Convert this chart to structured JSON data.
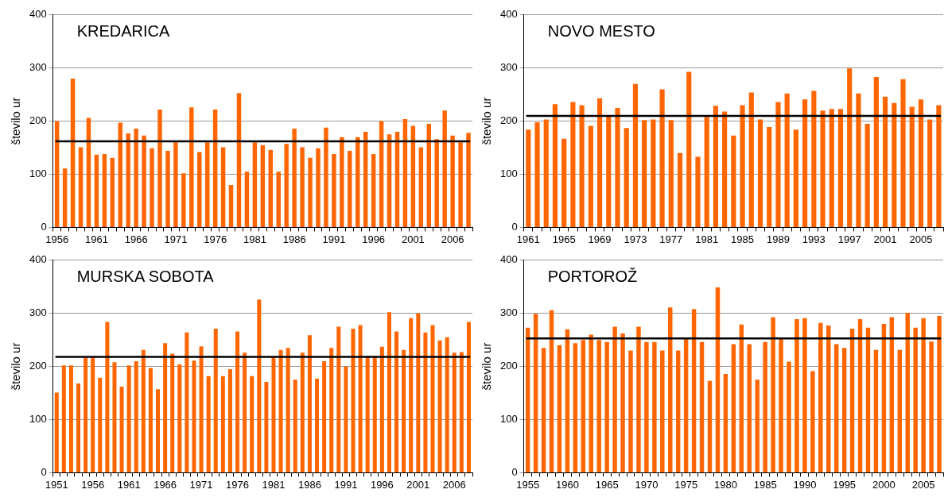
{
  "chart_data": [
    {
      "type": "bar",
      "title": "KREDARICA",
      "ylabel": "število ur",
      "grid": "y",
      "legend": false,
      "ylim": [
        0,
        400
      ],
      "yticks": [
        0,
        100,
        200,
        300,
        400
      ],
      "categories": [
        "1956",
        null,
        null,
        null,
        null,
        "1961",
        null,
        null,
        null,
        null,
        "1966",
        null,
        null,
        null,
        null,
        "1971",
        null,
        null,
        null,
        null,
        "1976",
        null,
        null,
        null,
        null,
        "1981",
        null,
        null,
        null,
        null,
        "1986",
        null,
        null,
        null,
        null,
        "1991",
        null,
        null,
        null,
        null,
        "1996",
        null,
        null,
        null,
        null,
        "2001",
        null,
        null,
        null,
        null,
        "2006",
        null,
        null
      ],
      "series": [
        {
          "color": "#ff6600",
          "values": [
            200,
            111,
            280,
            151,
            206,
            137,
            138,
            131,
            197,
            177,
            186,
            173,
            149,
            222,
            144,
            160,
            102,
            226,
            142,
            160,
            222,
            151,
            80,
            253,
            105,
            160,
            155,
            146,
            105,
            157,
            186,
            151,
            131,
            149,
            188,
            138,
            170,
            144,
            170,
            180,
            138,
            200,
            175,
            180,
            204,
            191,
            151,
            195,
            166,
            220,
            173,
            160,
            178
          ]
        }
      ],
      "ref_lines": [
        {
          "axis": "y",
          "value": 162,
          "color": "#000000"
        }
      ]
    },
    {
      "type": "bar",
      "title": "NOVO MESTO",
      "ylabel": "število ur",
      "grid": "y",
      "legend": false,
      "ylim": [
        0,
        400
      ],
      "yticks": [
        0,
        100,
        200,
        300,
        400
      ],
      "categories": [
        "1961",
        null,
        null,
        null,
        "1965",
        null,
        null,
        null,
        "1969",
        null,
        null,
        null,
        "1973",
        null,
        null,
        null,
        "1977",
        null,
        null,
        null,
        "1981",
        null,
        null,
        null,
        "1985",
        null,
        null,
        null,
        "1989",
        null,
        null,
        null,
        "1993",
        null,
        null,
        null,
        "1997",
        null,
        null,
        null,
        "2001",
        null,
        null,
        null,
        "2005",
        null,
        null
      ],
      "series": [
        {
          "color": "#ff6600",
          "values": [
            184,
            198,
            203,
            232,
            167,
            236,
            230,
            191,
            243,
            210,
            225,
            187,
            270,
            202,
            203,
            260,
            202,
            140,
            293,
            133,
            208,
            229,
            218,
            173,
            230,
            254,
            203,
            189,
            236,
            252,
            184,
            241,
            257,
            220,
            223,
            223,
            299,
            252,
            195,
            283,
            246,
            234,
            279,
            227,
            241,
            203,
            230
          ]
        }
      ],
      "ref_lines": [
        {
          "axis": "y",
          "value": 210,
          "color": "#000000"
        }
      ]
    },
    {
      "type": "bar",
      "title": "MURSKA SOBOTA",
      "ylabel": "število ur",
      "grid": "y",
      "legend": false,
      "ylim": [
        0,
        400
      ],
      "yticks": [
        0,
        100,
        200,
        300,
        400
      ],
      "categories": [
        "1951",
        null,
        null,
        null,
        null,
        "1956",
        null,
        null,
        null,
        null,
        "1961",
        null,
        null,
        null,
        null,
        "1966",
        null,
        null,
        null,
        null,
        "1971",
        null,
        null,
        null,
        null,
        "1976",
        null,
        null,
        null,
        null,
        "1981",
        null,
        null,
        null,
        null,
        "1986",
        null,
        null,
        null,
        null,
        "1991",
        null,
        null,
        null,
        null,
        "1996",
        null,
        null,
        null,
        null,
        "2001",
        null,
        null,
        null,
        null,
        "2006",
        null,
        null
      ],
      "series": [
        {
          "color": "#ff6600",
          "values": [
            151,
            202,
            202,
            168,
            217,
            217,
            179,
            284,
            208,
            162,
            202,
            210,
            231,
            197,
            157,
            244,
            224,
            204,
            264,
            211,
            238,
            182,
            271,
            182,
            195,
            266,
            226,
            182,
            326,
            171,
            217,
            231,
            235,
            175,
            226,
            259,
            177,
            210,
            235,
            275,
            200,
            271,
            278,
            220,
            220,
            237,
            302,
            266,
            231,
            291,
            300,
            264,
            278,
            249,
            255,
            226,
            227,
            284
          ]
        }
      ],
      "ref_lines": [
        {
          "axis": "y",
          "value": 218,
          "color": "#000000"
        }
      ]
    },
    {
      "type": "bar",
      "title": "PORTOROŽ",
      "ylabel": "število ur",
      "grid": "y",
      "legend": false,
      "ylim": [
        0,
        400
      ],
      "yticks": [
        0,
        100,
        200,
        300,
        400
      ],
      "categories": [
        "1955",
        null,
        null,
        null,
        null,
        "1960",
        null,
        null,
        null,
        null,
        "1965",
        null,
        null,
        null,
        null,
        "1970",
        null,
        null,
        null,
        null,
        "1975",
        null,
        null,
        null,
        null,
        "1980",
        null,
        null,
        null,
        null,
        "1985",
        null,
        null,
        null,
        null,
        "1990",
        null,
        null,
        null,
        null,
        "1995",
        null,
        null,
        null,
        null,
        "2000",
        null,
        null,
        null,
        null,
        "2005",
        null,
        null
      ],
      "series": [
        {
          "color": "#ff6600",
          "values": [
            273,
            299,
            235,
            306,
            240,
            270,
            244,
            250,
            260,
            250,
            246,
            275,
            262,
            230,
            275,
            246,
            246,
            230,
            311,
            230,
            252,
            308,
            246,
            173,
            349,
            186,
            242,
            279,
            242,
            175,
            246,
            293,
            252,
            209,
            289,
            291,
            191,
            282,
            277,
            242,
            235,
            271,
            289,
            273,
            231,
            280,
            293,
            231,
            301,
            273,
            291,
            247,
            295
          ]
        }
      ],
      "ref_lines": [
        {
          "axis": "y",
          "value": 253,
          "color": "#000000"
        }
      ]
    }
  ]
}
